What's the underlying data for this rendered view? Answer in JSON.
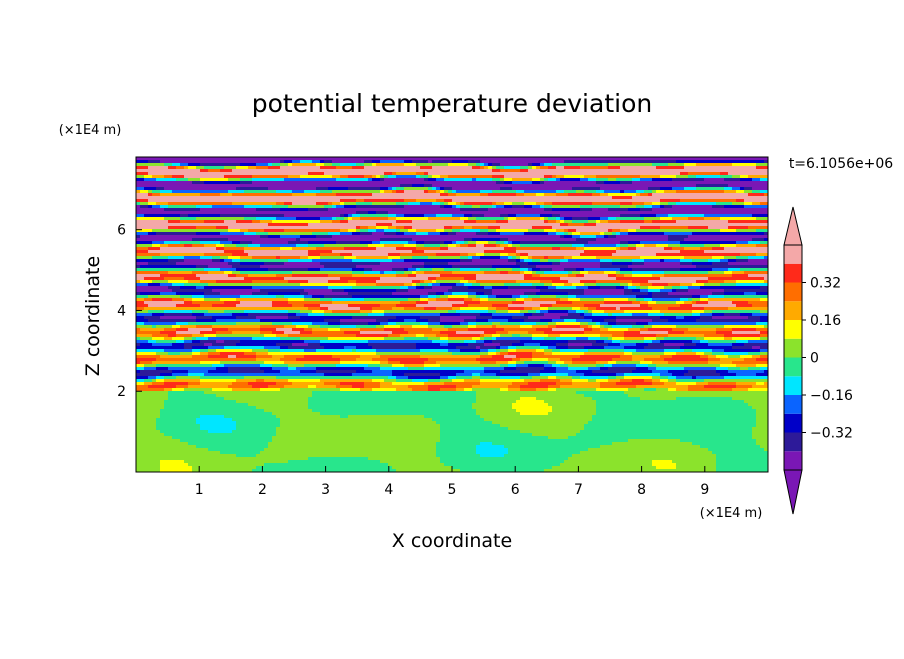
{
  "chart_data": {
    "type": "heatmap",
    "title": "potential temperature deviation",
    "xlabel": "X coordinate",
    "ylabel": "Z coordinate",
    "x_scale_label": "(×1E4 m)",
    "y_scale_label": "(×1E4 m)",
    "time_label": "t=6.1056e+06",
    "xlim": [
      0,
      10
    ],
    "ylim": [
      0,
      7.8
    ],
    "x_ticks": [
      "1",
      "2",
      "3",
      "4",
      "5",
      "6",
      "7",
      "8",
      "9"
    ],
    "y_ticks": [
      "2",
      "4",
      "6"
    ],
    "inversion_height": 2.0,
    "colorbar": {
      "levels": [
        -0.48,
        -0.4,
        -0.32,
        -0.24,
        -0.16,
        -0.08,
        0,
        0.08,
        0.16,
        0.24,
        0.32,
        0.4,
        0.48
      ],
      "tick_labels": [
        "0.32",
        "0.16",
        "0",
        "−0.16",
        "−0.32"
      ],
      "tick_values": [
        0.32,
        0.16,
        0,
        -0.16,
        -0.32
      ],
      "colors": [
        "#7a17b5",
        "#2d1a99",
        "#0000c8",
        "#0a64ff",
        "#00e6ff",
        "#28e68c",
        "#8be32c",
        "#ffff00",
        "#ffaa00",
        "#ff6e00",
        "#ff2a1a",
        "#f4a8a8"
      ],
      "over_color": "#f4a8a8",
      "under_color": "#7a17b5"
    }
  }
}
